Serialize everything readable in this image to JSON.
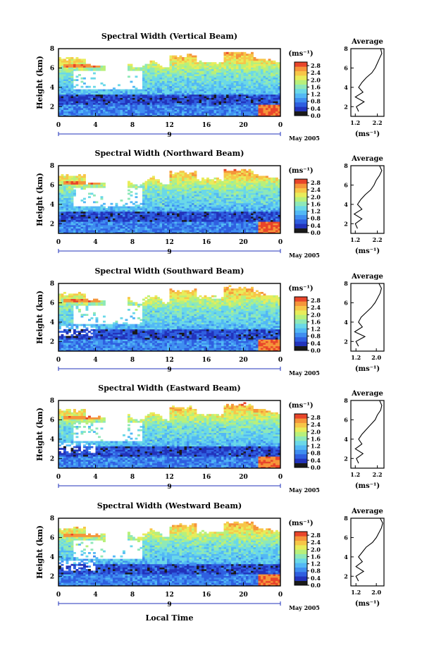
{
  "figure": {
    "xlabel_bottom": "Local Time",
    "date_label": "May 2005",
    "day_label": "9",
    "avg_title": "Average",
    "units": "(ms⁻¹)",
    "colors": [
      "#1a1a1a",
      "#2233bb",
      "#2f5fe0",
      "#3f8ef0",
      "#52b8f5",
      "#6ad8e8",
      "#8ee8b8",
      "#b8f07a",
      "#e8ec5a",
      "#f7c648",
      "#f5953a",
      "#e8452a"
    ]
  },
  "chart_data": [
    {
      "type": "heatmap",
      "title": "Spectral Width (Vertical Beam)",
      "ylabel": "Height (km)",
      "x_ticks": [
        "0",
        "4",
        "8",
        "12",
        "16",
        "20",
        "0"
      ],
      "y_ticks": [
        "2",
        "4",
        "6",
        "8"
      ],
      "xlim": [
        0,
        24
      ],
      "ylim": [
        1,
        8
      ],
      "colorbar_ticks": [
        "0.0",
        "0.4",
        "0.8",
        "1.2",
        "1.6",
        "2.0",
        "2.4",
        "2.8"
      ],
      "colorbar_range": [
        0,
        3.0
      ],
      "average_profile": {
        "x_ticks": [
          "1.2",
          "2.2"
        ],
        "xlim": [
          1.0,
          2.5
        ],
        "xlabel": "(ms⁻¹)",
        "heights": [
          1.5,
          2.0,
          2.5,
          3.0,
          3.5,
          4.0,
          4.5,
          5.0,
          5.5,
          6.0,
          6.5,
          7.0,
          7.5,
          8.0
        ],
        "values": [
          1.35,
          1.25,
          1.6,
          1.2,
          1.55,
          1.35,
          1.5,
          1.7,
          1.95,
          2.1,
          2.2,
          2.3,
          2.4,
          2.35
        ]
      }
    },
    {
      "type": "heatmap",
      "title": "Spectral Width (Northward Beam)",
      "ylabel": "Height (km)",
      "x_ticks": [
        "0",
        "4",
        "8",
        "12",
        "16",
        "20",
        "0"
      ],
      "y_ticks": [
        "2",
        "4",
        "6",
        "8"
      ],
      "xlim": [
        0,
        24
      ],
      "ylim": [
        1,
        8
      ],
      "colorbar_ticks": [
        "0.0",
        "0.4",
        "0.8",
        "1.2",
        "1.6",
        "2.0",
        "2.4",
        "2.8"
      ],
      "colorbar_range": [
        0,
        3.0
      ],
      "average_profile": {
        "x_ticks": [
          "1.2",
          "2.2"
        ],
        "xlim": [
          1.0,
          2.5
        ],
        "xlabel": "(ms⁻¹)",
        "heights": [
          1.5,
          2.0,
          2.5,
          3.0,
          3.5,
          4.0,
          4.5,
          5.0,
          5.5,
          6.0,
          6.5,
          7.0,
          7.5,
          8.0
        ],
        "values": [
          1.3,
          1.2,
          1.5,
          1.15,
          1.5,
          1.3,
          1.45,
          1.65,
          1.9,
          2.05,
          2.15,
          2.3,
          2.4,
          2.3
        ]
      }
    },
    {
      "type": "heatmap",
      "title": "Spectral Width (Southward Beam)",
      "ylabel": "Height (km)",
      "x_ticks": [
        "0",
        "4",
        "8",
        "12",
        "16",
        "20",
        "0"
      ],
      "y_ticks": [
        "2",
        "4",
        "6",
        "8"
      ],
      "xlim": [
        0,
        24
      ],
      "ylim": [
        1,
        8
      ],
      "colorbar_ticks": [
        "0.0",
        "0.4",
        "0.8",
        "1.2",
        "1.6",
        "2.0",
        "2.4",
        "2.8"
      ],
      "colorbar_range": [
        0,
        3.0
      ],
      "average_profile": {
        "x_ticks": [
          "1.2",
          "2.0"
        ],
        "xlim": [
          1.0,
          2.3
        ],
        "xlabel": "(ms⁻¹)",
        "heights": [
          1.5,
          2.0,
          2.5,
          3.0,
          3.5,
          4.0,
          4.5,
          5.0,
          5.5,
          6.0,
          6.5,
          7.0,
          7.5,
          8.0
        ],
        "values": [
          1.3,
          1.2,
          1.55,
          1.15,
          1.45,
          1.3,
          1.4,
          1.6,
          1.8,
          1.95,
          2.05,
          2.15,
          2.2,
          2.1
        ]
      }
    },
    {
      "type": "heatmap",
      "title": "Spectral Width (Eastward Beam)",
      "ylabel": "Height (km)",
      "x_ticks": [
        "0",
        "4",
        "8",
        "12",
        "16",
        "20",
        "0"
      ],
      "y_ticks": [
        "2",
        "4",
        "6",
        "8"
      ],
      "xlim": [
        0,
        24
      ],
      "ylim": [
        1,
        8
      ],
      "colorbar_ticks": [
        "0.0",
        "0.4",
        "0.8",
        "1.2",
        "1.6",
        "2.0",
        "2.4",
        "2.8"
      ],
      "colorbar_range": [
        0,
        3.0
      ],
      "average_profile": {
        "x_ticks": [
          "1.2",
          "2.2"
        ],
        "xlim": [
          1.0,
          2.5
        ],
        "xlabel": "(ms⁻¹)",
        "heights": [
          1.5,
          2.0,
          2.5,
          3.0,
          3.5,
          4.0,
          4.5,
          5.0,
          5.5,
          6.0,
          6.5,
          7.0,
          7.5,
          8.0
        ],
        "values": [
          1.35,
          1.25,
          1.55,
          1.2,
          1.5,
          1.35,
          1.5,
          1.7,
          1.9,
          2.1,
          2.2,
          2.35,
          2.4,
          2.3
        ]
      }
    },
    {
      "type": "heatmap",
      "title": "Spectral Width (Westward Beam)",
      "ylabel": "Height (km)",
      "x_ticks": [
        "0",
        "4",
        "8",
        "12",
        "16",
        "20",
        "0"
      ],
      "y_ticks": [
        "2",
        "4",
        "6",
        "8"
      ],
      "xlim": [
        0,
        24
      ],
      "ylim": [
        1,
        8
      ],
      "colorbar_ticks": [
        "0.0",
        "0.4",
        "0.8",
        "1.2",
        "1.6",
        "2.0",
        "2.4",
        "2.8"
      ],
      "colorbar_range": [
        0,
        3.0
      ],
      "average_profile": {
        "x_ticks": [
          "1.2",
          "2.0"
        ],
        "xlim": [
          1.0,
          2.3
        ],
        "xlabel": "(ms⁻¹)",
        "heights": [
          1.5,
          2.0,
          2.5,
          3.0,
          3.5,
          4.0,
          4.5,
          5.0,
          5.5,
          6.0,
          6.5,
          7.0,
          7.5,
          8.0
        ],
        "values": [
          1.3,
          1.2,
          1.5,
          1.2,
          1.45,
          1.3,
          1.45,
          1.6,
          1.85,
          2.0,
          2.1,
          2.2,
          2.25,
          2.15
        ]
      }
    }
  ]
}
